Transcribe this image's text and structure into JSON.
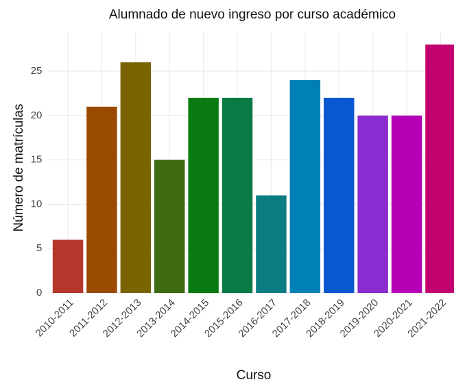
{
  "chart_data": {
    "type": "bar",
    "title": "Alumnado de nuevo ingreso por curso académico",
    "x_label": "Curso",
    "y_label": "Número de matrículas",
    "categories": [
      "2010-2011",
      "2011-2012",
      "2012-2013",
      "2013-2014",
      "2014-2015",
      "2015-2016",
      "2016-2017",
      "2017-2018",
      "2018-2019",
      "2019-2020",
      "2020-2021",
      "2021-2022"
    ],
    "values": [
      6,
      21,
      26,
      15,
      22,
      22,
      11,
      24,
      22,
      20,
      20,
      28
    ],
    "colors": [
      "#b5362b",
      "#9a4b00",
      "#7a6400",
      "#3f6b12",
      "#0a7a12",
      "#0a7a45",
      "#0a7c82",
      "#0080b4",
      "#0a58d0",
      "#8a2cd0",
      "#b600b6",
      "#c2006e"
    ],
    "ylim": [
      0,
      29.4
    ],
    "yticks": [
      0,
      5,
      10,
      15,
      20,
      25
    ],
    "grid": true
  }
}
